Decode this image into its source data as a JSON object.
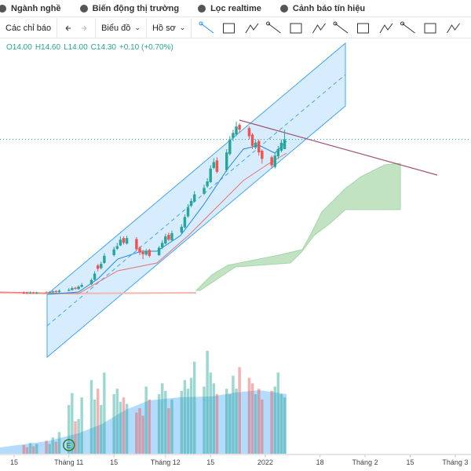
{
  "nav": [
    "Ngành nghề",
    "Biến động thị trường",
    "Lọc realtime",
    "Cảnh báo tín hiệu"
  ],
  "toolbar": [
    "Các chỉ báo",
    "Biểu đồ",
    "Hồ sơ"
  ],
  "ohlc_legend": [
    "O14.00",
    "H14.60",
    "L14.00",
    "C14.30",
    "+0.10 (+0.70%)"
  ],
  "chart_data": {
    "type": "candlestick",
    "x": [
      17,
      18,
      19,
      20,
      21,
      24,
      25,
      26,
      27,
      28,
      31,
      32,
      33,
      34,
      35,
      38,
      39,
      40,
      41,
      42,
      45,
      46,
      47,
      48,
      49,
      52,
      53,
      54,
      55,
      56,
      59,
      60,
      61,
      62,
      63,
      66,
      67,
      68,
      69,
      70,
      73,
      74,
      75,
      76,
      77,
      80,
      81,
      82,
      83,
      84,
      87,
      88,
      89,
      90,
      91,
      94,
      95,
      96,
      97,
      98
    ],
    "open": [
      9.56,
      9.56,
      9.54,
      9.57,
      9.54,
      9.57,
      9.56,
      9.57,
      9.61,
      9.58,
      9.62,
      9.64,
      9.71,
      9.67,
      9.74,
      9.82,
      9.96,
      10.4,
      10.32,
      10.48,
      10.72,
      10.92,
      11.02,
      11.25,
      11.08,
      11.22,
      10.95,
      10.82,
      10.74,
      10.88,
      10.72,
      10.96,
      11.08,
      11.35,
      11.18,
      11.42,
      11.58,
      11.92,
      12.25,
      12.38,
      12.62,
      12.85,
      12.98,
      13.42,
      13.65,
      13.35,
      13.85,
      14.35,
      14.45,
      14.75,
      14.65,
      14.45,
      14.05,
      14.25,
      13.95,
      13.75,
      13.45,
      13.78,
      13.95,
      14.0
    ],
    "high": [
      9.6,
      9.59,
      9.6,
      9.59,
      9.59,
      9.6,
      9.61,
      9.63,
      9.63,
      9.66,
      9.7,
      9.75,
      9.74,
      9.79,
      9.86,
      10.0,
      10.22,
      10.45,
      10.52,
      10.78,
      10.98,
      11.1,
      11.3,
      11.3,
      11.32,
      11.28,
      11.0,
      10.88,
      10.92,
      10.92,
      11.0,
      11.18,
      11.38,
      11.42,
      11.48,
      11.68,
      11.98,
      12.3,
      12.48,
      12.7,
      12.9,
      13.1,
      13.5,
      13.72,
      13.75,
      14.0,
      14.4,
      14.6,
      14.85,
      14.8,
      14.7,
      14.5,
      14.3,
      14.3,
      14.0,
      13.8,
      13.9,
      14.1,
      14.3,
      14.6
    ],
    "low": [
      9.52,
      9.52,
      9.52,
      9.52,
      9.52,
      9.54,
      9.54,
      9.55,
      9.56,
      9.56,
      9.6,
      9.62,
      9.65,
      9.65,
      9.72,
      9.8,
      9.94,
      10.22,
      10.28,
      10.45,
      10.68,
      10.88,
      11.0,
      11.05,
      11.05,
      10.85,
      10.72,
      10.6,
      10.7,
      10.65,
      10.7,
      10.9,
      11.05,
      11.15,
      11.15,
      11.38,
      11.55,
      11.88,
      12.2,
      12.35,
      12.58,
      12.8,
      12.95,
      13.38,
      13.25,
      13.3,
      13.8,
      14.25,
      14.4,
      14.5,
      14.3,
      14.0,
      14.0,
      13.8,
      13.55,
      13.4,
      13.4,
      13.7,
      13.9,
      14.0
    ],
    "close": [
      9.55,
      9.55,
      9.56,
      9.55,
      9.56,
      9.56,
      9.58,
      9.6,
      9.58,
      9.62,
      9.65,
      9.7,
      9.68,
      9.75,
      9.8,
      9.95,
      10.15,
      10.3,
      10.45,
      10.7,
      10.9,
      11.0,
      11.2,
      11.1,
      11.25,
      10.9,
      10.8,
      10.75,
      10.85,
      10.7,
      10.95,
      11.1,
      11.3,
      11.2,
      11.4,
      11.6,
      11.9,
      12.2,
      12.4,
      12.6,
      12.8,
      13.0,
      13.4,
      13.6,
      13.3,
      13.9,
      14.3,
      14.5,
      14.7,
      14.6,
      14.4,
      14.1,
      14.2,
      13.9,
      13.7,
      13.5,
      13.8,
      14.0,
      14.2,
      14.3
    ],
    "volume": [
      0.8,
      0.6,
      1.0,
      0.7,
      0.9,
      1.2,
      0.9,
      1.5,
      1.1,
      2.0,
      4.5,
      5.6,
      3.0,
      3.2,
      5.2,
      6.8,
      5.0,
      6.0,
      4.5,
      7.5,
      5.5,
      6.0,
      4.8,
      5.2,
      4.6,
      3.8,
      4.2,
      3.5,
      6.2,
      5.0,
      5.5,
      6.5,
      5.8,
      4.2,
      5.0,
      5.8,
      6.8,
      6.0,
      7.0,
      8.5,
      6.2,
      9.5,
      7.5,
      6.5,
      5.5,
      6.0,
      5.5,
      7.2,
      6.0,
      8.0,
      7.0,
      6.5,
      5.5,
      6.0,
      5.0,
      5.8,
      6.2,
      7.5,
      5.5,
      5.2
    ],
    "xlim": [
      9.6,
      155.9
    ],
    "xticks": [
      {
        "value": 14,
        "label": "15"
      },
      {
        "value": 31,
        "label": "Tháng 11"
      },
      {
        "value": 45,
        "label": "15"
      },
      {
        "value": 61,
        "label": "Tháng 12"
      },
      {
        "value": 75,
        "label": "15"
      },
      {
        "value": 92,
        "label": "2022"
      },
      {
        "value": 109,
        "label": "18"
      },
      {
        "value": 123,
        "label": "Tháng 2"
      },
      {
        "value": 137,
        "label": "15"
      },
      {
        "value": 151,
        "label": "Tháng 3"
      }
    ],
    "ylim": [
      7.2,
      17.4
    ],
    "volume_lim": [
      0,
      10
    ],
    "colors": {
      "up": "#26a69a",
      "down": "#ef5350"
    },
    "event_marker": {
      "x": 31,
      "label": "E"
    }
  }
}
